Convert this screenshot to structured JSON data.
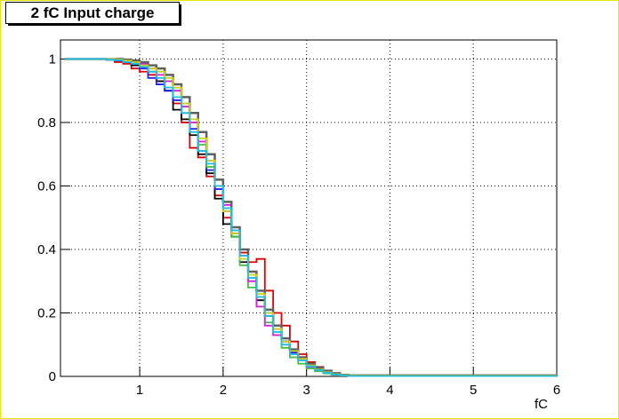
{
  "chart_data": {
    "type": "step",
    "title": "2 fC Input charge",
    "x_label": "fC",
    "x": [
      0.1,
      0.6,
      0.7,
      0.8,
      0.9,
      1.0,
      1.1,
      1.2,
      1.3,
      1.4,
      1.5,
      1.6,
      1.7,
      1.8,
      1.9,
      2.0,
      2.1,
      2.2,
      2.3,
      2.4,
      2.5,
      2.6,
      2.7,
      2.8,
      2.9,
      3.0,
      3.1,
      3.2,
      3.3,
      3.4,
      3.5,
      6.0
    ],
    "series": [
      {
        "color": "#e00000",
        "values": [
          1,
          0.998,
          0.99,
          0.985,
          0.97,
          0.96,
          0.95,
          0.93,
          0.9,
          0.86,
          0.8,
          0.72,
          0.69,
          0.63,
          0.57,
          0.5,
          0.45,
          0.39,
          0.36,
          0.37,
          0.27,
          0.2,
          0.16,
          0.11,
          0.07,
          0.045,
          0.03,
          0.018,
          0.009,
          0.004,
          0.002,
          0
        ]
      },
      {
        "color": "#000000",
        "values": [
          1,
          0.998,
          0.995,
          0.99,
          0.98,
          0.975,
          0.96,
          0.93,
          0.9,
          0.84,
          0.81,
          0.76,
          0.7,
          0.64,
          0.56,
          0.48,
          0.44,
          0.36,
          0.3,
          0.24,
          0.19,
          0.15,
          0.11,
          0.08,
          0.06,
          0.04,
          0.025,
          0.014,
          0.008,
          0.005,
          0.002,
          0
        ]
      },
      {
        "color": "#2020ff",
        "values": [
          1,
          0.998,
          0.995,
          0.99,
          0.985,
          0.97,
          0.94,
          0.92,
          0.9,
          0.87,
          0.83,
          0.78,
          0.71,
          0.65,
          0.59,
          0.52,
          0.45,
          0.38,
          0.31,
          0.25,
          0.2,
          0.15,
          0.11,
          0.075,
          0.05,
          0.03,
          0.02,
          0.012,
          0.006,
          0.003,
          0.001,
          0
        ]
      },
      {
        "color": "#40c040",
        "values": [
          1,
          1,
          0.998,
          0.995,
          0.99,
          0.98,
          0.97,
          0.96,
          0.93,
          0.9,
          0.86,
          0.8,
          0.73,
          0.66,
          0.6,
          0.53,
          0.44,
          0.35,
          0.28,
          0.22,
          0.17,
          0.13,
          0.09,
          0.06,
          0.04,
          0.025,
          0.016,
          0.009,
          0.005,
          0.003,
          0.001,
          0
        ]
      },
      {
        "color": "#e020e0",
        "values": [
          1,
          1,
          0.998,
          0.995,
          0.99,
          0.985,
          0.97,
          0.95,
          0.93,
          0.9,
          0.85,
          0.8,
          0.74,
          0.68,
          0.6,
          0.54,
          0.46,
          0.38,
          0.3,
          0.22,
          0.16,
          0.13,
          0.1,
          0.07,
          0.05,
          0.03,
          0.02,
          0.012,
          0.006,
          0.003,
          0.001,
          0
        ]
      },
      {
        "color": "#606060",
        "values": [
          1,
          1,
          1,
          0.998,
          0.995,
          0.99,
          0.98,
          0.97,
          0.95,
          0.92,
          0.88,
          0.83,
          0.77,
          0.7,
          0.62,
          0.55,
          0.47,
          0.4,
          0.33,
          0.27,
          0.21,
          0.16,
          0.12,
          0.085,
          0.06,
          0.04,
          0.028,
          0.018,
          0.01,
          0.005,
          0.003,
          0
        ]
      },
      {
        "color": "#d0d020",
        "values": [
          1,
          1,
          0.998,
          0.995,
          0.99,
          0.98,
          0.97,
          0.96,
          0.94,
          0.91,
          0.86,
          0.81,
          0.75,
          0.68,
          0.6,
          0.52,
          0.45,
          0.37,
          0.32,
          0.26,
          0.2,
          0.15,
          0.11,
          0.08,
          0.055,
          0.035,
          0.022,
          0.013,
          0.007,
          0.004,
          0.002,
          0
        ]
      },
      {
        "color": "#20c0e0",
        "values": [
          1,
          0.998,
          0.996,
          0.99,
          0.985,
          0.975,
          0.96,
          0.94,
          0.91,
          0.88,
          0.83,
          0.77,
          0.71,
          0.67,
          0.6,
          0.53,
          0.46,
          0.38,
          0.31,
          0.25,
          0.19,
          0.14,
          0.1,
          0.07,
          0.05,
          0.032,
          0.02,
          0.011,
          0.006,
          0.003,
          0.001,
          0
        ]
      }
    ],
    "xlim": [
      0.05,
      6
    ],
    "ylim": [
      0,
      1.06
    ],
    "xticks": [
      1,
      2,
      3,
      4,
      5,
      6
    ],
    "yticks": [
      0,
      0.2,
      0.4,
      0.6,
      0.8,
      1
    ],
    "grid": true
  }
}
